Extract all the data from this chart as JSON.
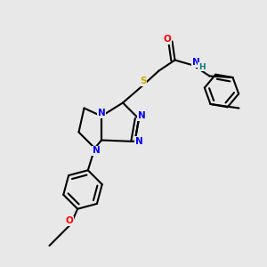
{
  "bg_color": "#e8e8e8",
  "atom_colors": {
    "C": "#000000",
    "N": "#0000ff",
    "O": "#ff0000",
    "S": "#ccaa00",
    "H": "#008080"
  },
  "bond_color": "#000000",
  "bond_width": 1.5
}
